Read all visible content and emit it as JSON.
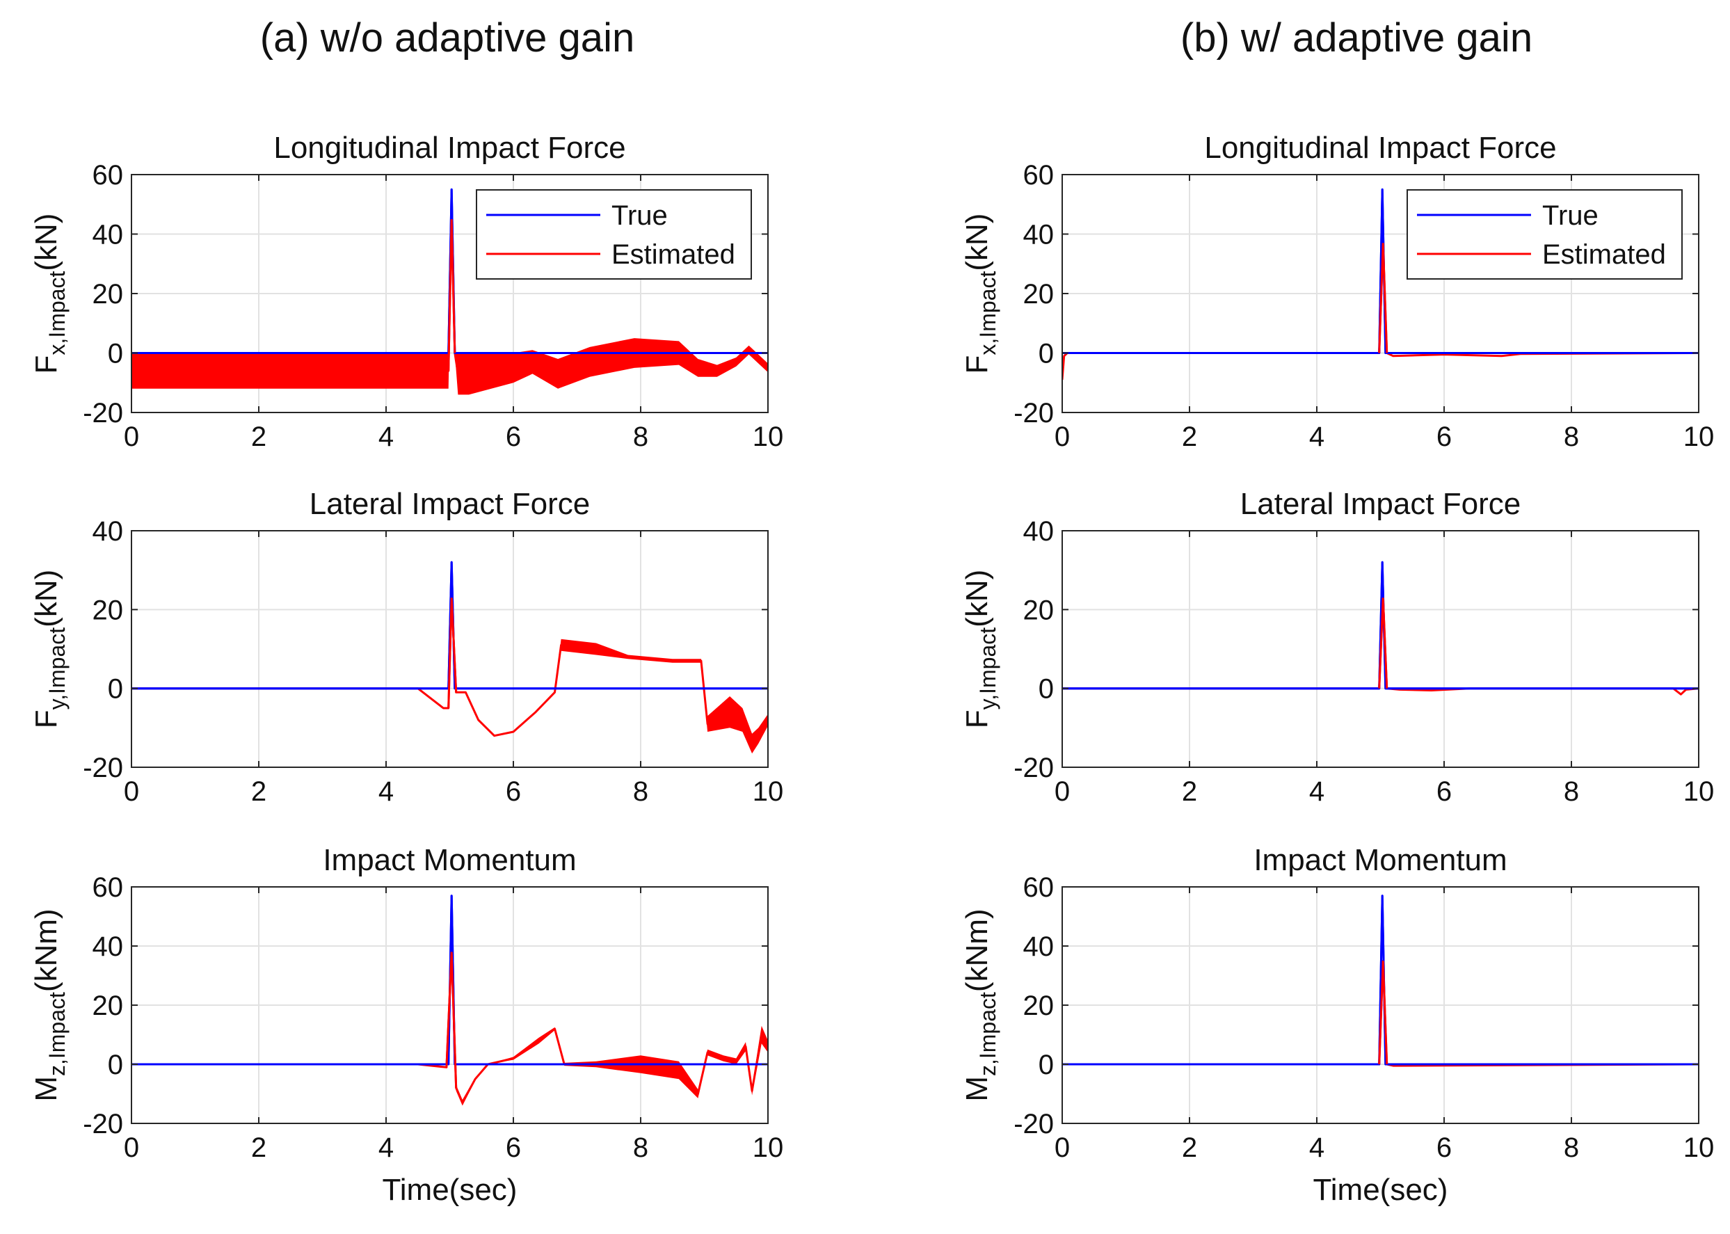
{
  "figure": {
    "columns": [
      {
        "title": "(a) w/o adaptive gain",
        "variant": "without"
      },
      {
        "title": "(b) w/ adaptive gain",
        "variant": "with"
      }
    ]
  },
  "chart_data": [
    {
      "type": "line",
      "panel": "a-fx",
      "title": "Longitudinal Impact Force",
      "ylabel_main": "F",
      "ylabel_sub": "x,Impact",
      "ylabel_unit": "(kN)",
      "xlabel": "",
      "xlim": [
        0,
        10
      ],
      "ylim": [
        -20,
        60
      ],
      "xticks": [
        0,
        2,
        4,
        6,
        8,
        10
      ],
      "yticks": [
        -20,
        0,
        20,
        40,
        60
      ],
      "grid": true,
      "legend": {
        "position": "top-right",
        "entries": [
          "True",
          "Estimated"
        ]
      },
      "series": [
        {
          "name": "True",
          "color": "#0000ff",
          "x": [
            0,
            4.98,
            5.03,
            5.08,
            5.13,
            10
          ],
          "y": [
            0,
            0,
            55,
            0,
            0,
            0
          ]
        },
        {
          "name": "Estimated",
          "color": "#ff0000",
          "x": [
            0,
            4.98,
            5.03,
            5.08,
            5.13,
            5.3,
            6.0,
            6.3,
            6.7,
            7.2,
            7.9,
            8.6,
            8.9,
            9.2,
            9.5,
            9.7,
            9.85,
            10
          ],
          "y": [
            -6,
            -6,
            45,
            0,
            -7,
            -7,
            -5,
            -3,
            -7,
            -3,
            0,
            0,
            -5,
            -6,
            -3,
            1,
            -2,
            -5
          ],
          "band": [
            12,
            12,
            0,
            0,
            14,
            14,
            10,
            8,
            10,
            10,
            10,
            8,
            6,
            4,
            3,
            3,
            3,
            3
          ]
        }
      ]
    },
    {
      "type": "line",
      "panel": "a-fy",
      "title": "Lateral Impact Force",
      "ylabel_main": "F",
      "ylabel_sub": "y,Impact",
      "ylabel_unit": "(kN)",
      "xlabel": "",
      "xlim": [
        0,
        10
      ],
      "ylim": [
        -20,
        40
      ],
      "xticks": [
        0,
        2,
        4,
        6,
        8,
        10
      ],
      "yticks": [
        -20,
        0,
        20,
        40
      ],
      "grid": true,
      "series": [
        {
          "name": "True",
          "color": "#0000ff",
          "x": [
            0,
            4.98,
            5.03,
            5.08,
            5.13,
            10
          ],
          "y": [
            0,
            0,
            32,
            0,
            0,
            0
          ]
        },
        {
          "name": "Estimated",
          "color": "#ff0000",
          "x": [
            0,
            4.5,
            4.9,
            4.98,
            5.03,
            5.1,
            5.25,
            5.45,
            5.7,
            6.0,
            6.35,
            6.65,
            6.75,
            7.3,
            7.8,
            8.5,
            8.95,
            9.05,
            9.4,
            9.6,
            9.75,
            9.85,
            10
          ],
          "y": [
            0,
            0,
            -5,
            -5,
            23,
            -1,
            -1,
            -8,
            -12,
            -11,
            -6,
            -1,
            11,
            10,
            8,
            7,
            7,
            -9,
            -6,
            -8,
            -14,
            -12,
            -8
          ],
          "band": [
            0,
            0,
            0,
            0,
            0,
            0,
            0,
            0,
            0,
            0,
            0,
            0,
            3,
            3,
            1,
            1,
            1,
            4,
            8,
            6,
            5,
            4,
            3
          ]
        }
      ]
    },
    {
      "type": "line",
      "panel": "a-mz",
      "title": "Impact Momentum",
      "ylabel_main": "M",
      "ylabel_sub": "z,Impact",
      "ylabel_unit": "(kNm)",
      "xlabel": "Time(sec)",
      "xlim": [
        0,
        10
      ],
      "ylim": [
        -20,
        60
      ],
      "xticks": [
        0,
        2,
        4,
        6,
        8,
        10
      ],
      "yticks": [
        -20,
        0,
        20,
        40,
        60
      ],
      "grid": true,
      "series": [
        {
          "name": "True",
          "color": "#0000ff",
          "x": [
            0,
            4.98,
            5.03,
            5.08,
            5.13,
            10
          ],
          "y": [
            0,
            0,
            57,
            0,
            0,
            0
          ]
        },
        {
          "name": "Estimated",
          "color": "#ff0000",
          "x": [
            0,
            4.5,
            4.95,
            5.03,
            5.1,
            5.2,
            5.4,
            5.6,
            6.0,
            6.4,
            6.65,
            6.8,
            7.3,
            8.0,
            8.6,
            8.9,
            9.05,
            9.3,
            9.5,
            9.65,
            9.75,
            9.9,
            10
          ],
          "y": [
            0,
            0,
            -1,
            38,
            -8,
            -13,
            -5,
            0,
            2,
            8,
            12,
            0,
            0,
            0,
            -2,
            -10,
            4,
            2,
            1,
            6,
            -9,
            10,
            6
          ],
          "band": [
            0,
            0,
            0,
            0,
            2,
            2,
            1,
            0,
            1,
            2,
            1,
            1,
            2,
            6,
            6,
            3,
            2,
            2,
            2,
            3,
            3,
            6,
            4
          ]
        }
      ]
    },
    {
      "type": "line",
      "panel": "b-fx",
      "title": "Longitudinal Impact Force",
      "ylabel_main": "F",
      "ylabel_sub": "x,Impact",
      "ylabel_unit": "(kN)",
      "xlabel": "",
      "xlim": [
        0,
        10
      ],
      "ylim": [
        -20,
        60
      ],
      "xticks": [
        0,
        2,
        4,
        6,
        8,
        10
      ],
      "yticks": [
        -20,
        0,
        20,
        40,
        60
      ],
      "grid": true,
      "legend": {
        "position": "top-right",
        "entries": [
          "True",
          "Estimated"
        ]
      },
      "series": [
        {
          "name": "True",
          "color": "#0000ff",
          "x": [
            0,
            4.98,
            5.03,
            5.08,
            5.13,
            10
          ],
          "y": [
            0,
            0,
            55,
            0,
            0,
            0
          ]
        },
        {
          "name": "Estimated",
          "color": "#ff0000",
          "x": [
            0,
            0.03,
            0.08,
            4.98,
            5.04,
            5.1,
            5.2,
            6.0,
            6.9,
            7.2,
            10
          ],
          "y": [
            -9,
            -1,
            0,
            0,
            37,
            0,
            -1,
            -0.5,
            -1,
            -0.3,
            0
          ]
        }
      ]
    },
    {
      "type": "line",
      "panel": "b-fy",
      "title": "Lateral Impact Force",
      "ylabel_main": "F",
      "ylabel_sub": "y,Impact",
      "ylabel_unit": "(kN)",
      "xlabel": "",
      "xlim": [
        0,
        10
      ],
      "ylim": [
        -20,
        40
      ],
      "xticks": [
        0,
        2,
        4,
        6,
        8,
        10
      ],
      "yticks": [
        -20,
        0,
        20,
        40
      ],
      "grid": true,
      "series": [
        {
          "name": "True",
          "color": "#0000ff",
          "x": [
            0,
            4.98,
            5.03,
            5.08,
            5.13,
            10
          ],
          "y": [
            0,
            0,
            32,
            0,
            0,
            0
          ]
        },
        {
          "name": "Estimated",
          "color": "#ff0000",
          "x": [
            0,
            4.98,
            5.04,
            5.1,
            5.3,
            5.8,
            6.4,
            9.6,
            9.72,
            9.8,
            10
          ],
          "y": [
            0,
            0,
            23,
            0,
            -0.3,
            -0.5,
            0,
            0,
            -1.5,
            -0.3,
            0
          ]
        }
      ]
    },
    {
      "type": "line",
      "panel": "b-mz",
      "title": "Impact Momentum",
      "ylabel_main": "M",
      "ylabel_sub": "z,Impact",
      "ylabel_unit": "(kNm)",
      "xlabel": "Time(sec)",
      "xlim": [
        0,
        10
      ],
      "ylim": [
        -20,
        60
      ],
      "xticks": [
        0,
        2,
        4,
        6,
        8,
        10
      ],
      "yticks": [
        -20,
        0,
        20,
        40,
        60
      ],
      "grid": true,
      "series": [
        {
          "name": "True",
          "color": "#0000ff",
          "x": [
            0,
            4.98,
            5.03,
            5.08,
            5.13,
            10
          ],
          "y": [
            0,
            0,
            57,
            0,
            0,
            0
          ]
        },
        {
          "name": "Estimated",
          "color": "#ff0000",
          "x": [
            0,
            4.98,
            5.04,
            5.1,
            5.2,
            10
          ],
          "y": [
            0,
            0,
            35,
            0,
            -0.5,
            0
          ]
        }
      ]
    }
  ]
}
